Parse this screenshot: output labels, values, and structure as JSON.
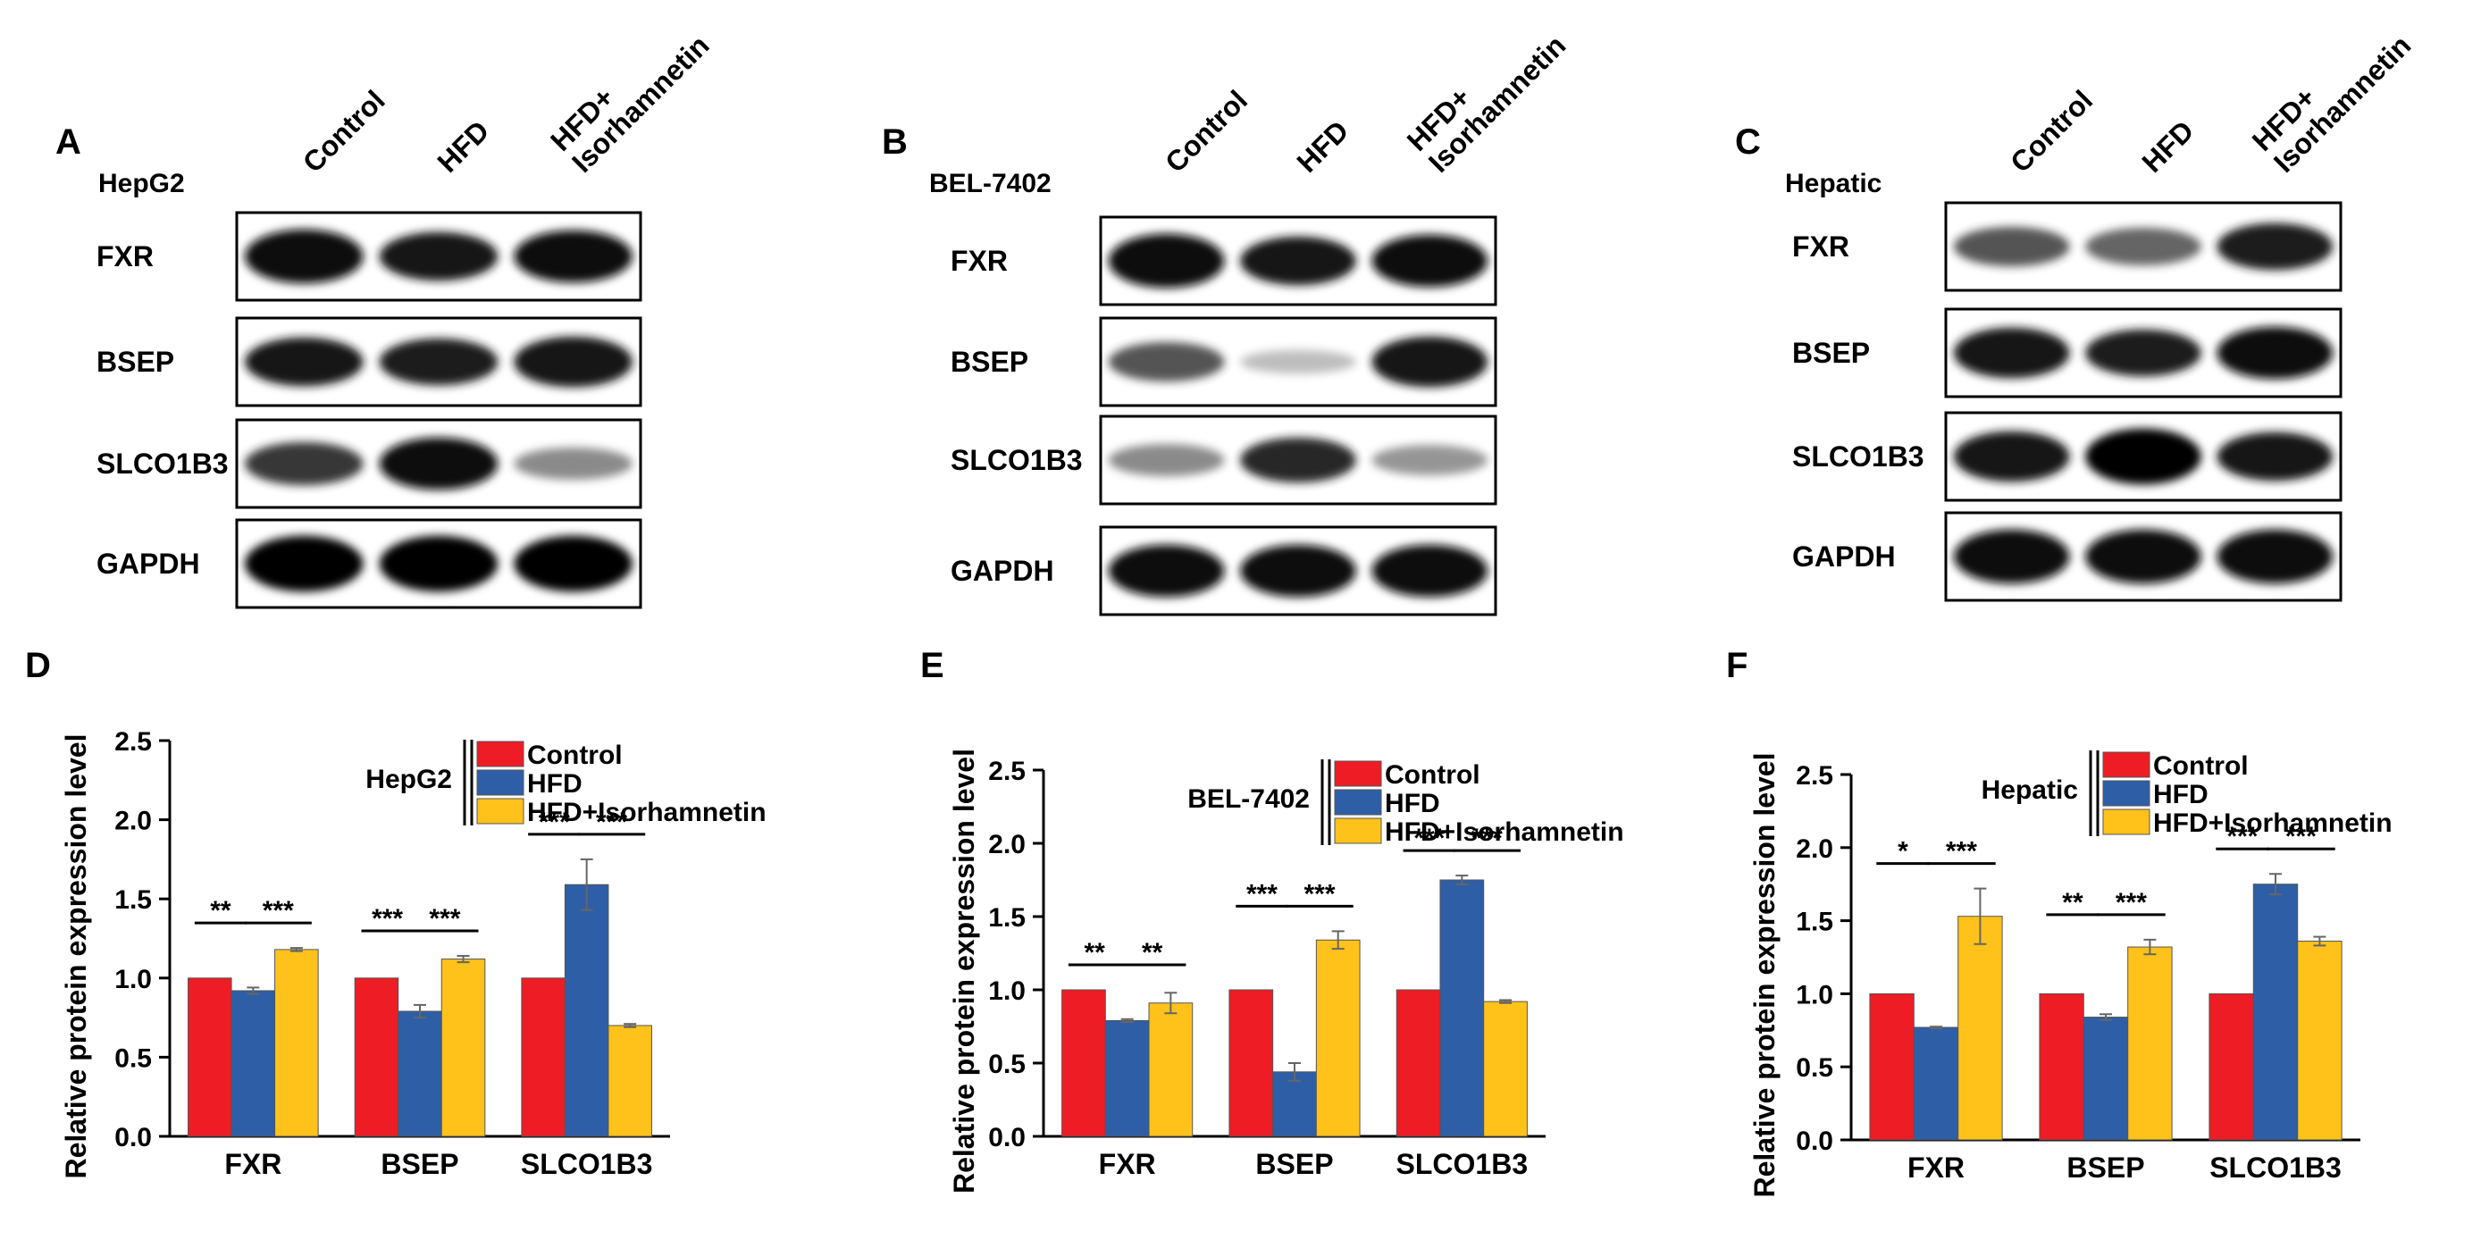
{
  "blots": [
    {
      "panel_letter": "A",
      "cell_line": "HepG2",
      "lanes": [
        "Control",
        "HFD",
        "HFD+\nIsorhamnetin"
      ],
      "proteins": [
        "FXR",
        "BSEP",
        "SLCO1B3",
        "GAPDH"
      ],
      "bands": [
        [
          0.95,
          0.8,
          0.9
        ],
        [
          0.8,
          0.75,
          0.85
        ],
        [
          0.65,
          0.9,
          0.35
        ],
        [
          1.0,
          1.0,
          1.0
        ]
      ]
    },
    {
      "panel_letter": "B",
      "cell_line": "BEL-7402",
      "lanes": [
        "Control",
        "HFD",
        "HFD+\nIsorhamnetin"
      ],
      "proteins": [
        "FXR",
        "BSEP",
        "SLCO1B3",
        "GAPDH"
      ],
      "bands": [
        [
          0.95,
          0.8,
          0.9
        ],
        [
          0.55,
          0.12,
          0.85
        ],
        [
          0.35,
          0.7,
          0.3
        ],
        [
          0.9,
          0.9,
          0.9
        ]
      ]
    },
    {
      "panel_letter": "C",
      "cell_line": "Hepatic",
      "lanes": [
        "Control",
        "HFD",
        "HFD+\nIsorhamnetin"
      ],
      "proteins": [
        "FXR",
        "BSEP",
        "SLCO1B3",
        "GAPDH"
      ],
      "bands": [
        [
          0.55,
          0.5,
          0.75
        ],
        [
          0.85,
          0.75,
          0.9
        ],
        [
          0.85,
          1.0,
          0.8
        ],
        [
          0.95,
          0.95,
          0.95
        ]
      ]
    }
  ],
  "chart_data": [
    {
      "type": "bar",
      "panel_letter": "D",
      "legend_title": "HepG2",
      "ylabel": "Relative protein expression level",
      "categories": [
        "FXR",
        "BSEP",
        "SLCO1B3"
      ],
      "ylim": [
        0,
        2.5
      ],
      "yticks": [
        "0.0",
        "0.5",
        "1.0",
        "1.5",
        "2.0",
        "2.5"
      ],
      "series": [
        {
          "name": "Control",
          "color": "#ee1c25",
          "values": [
            1.0,
            1.0,
            1.0
          ],
          "errors": [
            0,
            0,
            0
          ]
        },
        {
          "name": "HFD",
          "color": "#2e5ea6",
          "values": [
            0.92,
            0.79,
            1.59
          ],
          "errors": [
            0.02,
            0.04,
            0.16
          ]
        },
        {
          "name": "HFD+Isorhamnetin",
          "color": "#ffc21a",
          "values": [
            1.18,
            1.12,
            0.7
          ],
          "errors": [
            0.01,
            0.02,
            0.01
          ]
        }
      ],
      "significance": [
        [
          "**",
          "***"
        ],
        [
          "***",
          "***"
        ],
        [
          "***",
          "***"
        ]
      ]
    },
    {
      "type": "bar",
      "panel_letter": "E",
      "legend_title": "BEL-7402",
      "ylabel": "Relative protein expression level",
      "categories": [
        "FXR",
        "BSEP",
        "SLCO1B3"
      ],
      "ylim": [
        0,
        2.5
      ],
      "yticks": [
        "0.0",
        "0.5",
        "1.0",
        "1.5",
        "2.0",
        "2.5"
      ],
      "series": [
        {
          "name": "Control",
          "color": "#ee1c25",
          "values": [
            1.0,
            1.0,
            1.0
          ],
          "errors": [
            0,
            0,
            0
          ]
        },
        {
          "name": "HFD",
          "color": "#2e5ea6",
          "values": [
            0.79,
            0.44,
            1.75
          ],
          "errors": [
            0.01,
            0.06,
            0.03
          ]
        },
        {
          "name": "HFD+Isorhamnetin",
          "color": "#ffc21a",
          "values": [
            0.91,
            1.34,
            0.92
          ],
          "errors": [
            0.07,
            0.06,
            0.01
          ]
        }
      ],
      "significance": [
        [
          "**",
          "**"
        ],
        [
          "***",
          "***"
        ],
        [
          "***",
          "***"
        ]
      ]
    },
    {
      "type": "bar",
      "panel_letter": "F",
      "legend_title": "Hepatic",
      "ylabel": "Relative protein expression level",
      "categories": [
        "FXR",
        "BSEP",
        "SLCO1B3"
      ],
      "ylim": [
        0,
        2.5
      ],
      "yticks": [
        "0.0",
        "0.5",
        "1.0",
        "1.5",
        "2.0",
        "2.5"
      ],
      "series": [
        {
          "name": "Control",
          "color": "#ee1c25",
          "values": [
            1.0,
            1.0,
            1.0
          ],
          "errors": [
            0,
            0,
            0
          ]
        },
        {
          "name": "HFD",
          "color": "#2e5ea6",
          "values": [
            0.77,
            0.84,
            1.75
          ],
          "errors": [
            0.005,
            0.02,
            0.07
          ]
        },
        {
          "name": "HFD+Isorhamnetin",
          "color": "#ffc21a",
          "values": [
            1.53,
            1.32,
            1.36
          ],
          "errors": [
            0.19,
            0.05,
            0.03
          ]
        }
      ],
      "significance": [
        [
          "*",
          "***"
        ],
        [
          "**",
          "***"
        ],
        [
          "***",
          "***"
        ]
      ]
    }
  ]
}
